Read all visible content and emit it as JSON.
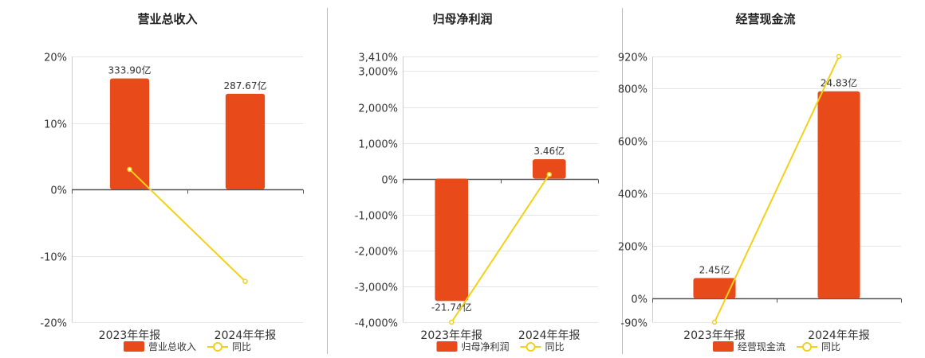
{
  "colors": {
    "bar": "#e84a1a",
    "line": "#f2d11a",
    "grid": "#e6e6e6",
    "axis": "#555555",
    "divider": "#bbbbbb"
  },
  "chart_data": [
    {
      "type": "bar",
      "title": "营业总收入",
      "categories": [
        "2023年年报",
        "2024年年报"
      ],
      "series": [
        {
          "name": "营业总收入",
          "kind": "bar",
          "axis": "bar",
          "values": [
            333.9,
            287.67
          ],
          "labels": [
            "333.90亿",
            "287.67亿"
          ]
        },
        {
          "name": "同比",
          "kind": "line",
          "axis": "pct",
          "values": [
            3.0,
            -13.85
          ]
        }
      ],
      "pct_axis": {
        "ticks": [
          20,
          10,
          0,
          -10,
          -20
        ],
        "tick_labels": [
          "20%",
          "10%",
          "0%",
          "-10%",
          "-20%"
        ],
        "ylim": [
          -20,
          20
        ]
      },
      "bar_axis": {
        "ylim": [
          -400,
          400
        ]
      },
      "grid": true,
      "legend": "bottom"
    },
    {
      "type": "bar",
      "title": "归母净利润",
      "categories": [
        "2023年年报",
        "2024年年报"
      ],
      "series": [
        {
          "name": "归母净利润",
          "kind": "bar",
          "axis": "bar",
          "values": [
            -21.74,
            3.46
          ],
          "labels": [
            "-21.74亿",
            "3.46亿"
          ]
        },
        {
          "name": "同比",
          "kind": "line",
          "axis": "pct",
          "values": [
            -4000,
            120
          ]
        }
      ],
      "pct_axis": {
        "ticks": [
          3410,
          3000,
          2000,
          1000,
          0,
          -1000,
          -2000,
          -3000,
          -4000
        ],
        "tick_labels": [
          "3,410%",
          "3,000%",
          "2,000%",
          "1,000%",
          "0%",
          "-1,000%",
          "-2,000%",
          "-3,000%",
          "-4,000%"
        ],
        "ylim": [
          -4000,
          3410
        ]
      },
      "bar_axis": {
        "ylim": [
          -25.5,
          21.7
        ]
      },
      "grid": true,
      "legend": "bottom"
    },
    {
      "type": "bar",
      "title": "经营现金流",
      "categories": [
        "2023年年报",
        "2024年年报"
      ],
      "series": [
        {
          "name": "经营现金流",
          "kind": "bar",
          "axis": "bar",
          "values": [
            2.45,
            24.83
          ],
          "labels": [
            "2.45亿",
            "24.83亿"
          ]
        },
        {
          "name": "同比",
          "kind": "line",
          "axis": "pct",
          "values": [
            -90,
            920
          ]
        }
      ],
      "pct_axis": {
        "ticks": [
          920,
          800,
          600,
          400,
          200,
          0,
          -90
        ],
        "tick_labels": [
          "920%",
          "800%",
          "600%",
          "400%",
          "200%",
          "0%",
          "-90%"
        ],
        "ylim": [
          -90,
          920
        ]
      },
      "bar_axis": {
        "ylim": [
          -2.84,
          29.0
        ]
      },
      "grid": true,
      "legend": "bottom"
    }
  ]
}
